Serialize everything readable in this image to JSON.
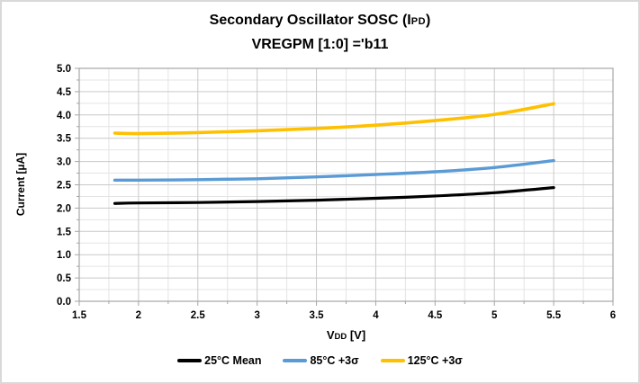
{
  "frame": {
    "background": "#FFFFFF",
    "border_color": "#D9D9D9"
  },
  "title": {
    "line1_prefix": "Secondary Oscillator SOSC (I",
    "line1_subscript": "PD",
    "line1_suffix": ")",
    "line2": "VREGPM [1:0] ='b11"
  },
  "axes": {
    "y_title": "Current [µA]",
    "x_title_main": "V",
    "x_title_subscript": "DD",
    "x_title_rest": " [V]"
  },
  "chart_data": {
    "type": "line",
    "title": "Secondary Oscillator SOSC (IPD) VREGPM [1:0] ='b11",
    "xlabel": "VDD [V]",
    "ylabel": "Current [µA]",
    "xlim": [
      1.5,
      6
    ],
    "ylim": [
      0,
      5
    ],
    "x_major_step": 0.5,
    "x_minor_step": 0.25,
    "y_major_step": 0.5,
    "y_minor_step": 0.25,
    "x_tick_labels": [
      "1.5",
      "2",
      "2.5",
      "3",
      "3.5",
      "4",
      "4.5",
      "5",
      "5.5",
      "6"
    ],
    "y_tick_labels": [
      "0.0",
      "0.5",
      "1.0",
      "1.5",
      "2.0",
      "2.5",
      "3.0",
      "3.5",
      "4.0",
      "4.5",
      "5.0"
    ],
    "grid": {
      "major": true,
      "minor": true
    },
    "legend_position": "bottom",
    "x": [
      1.8,
      2.0,
      2.5,
      3.0,
      3.5,
      4.0,
      4.5,
      5.0,
      5.5
    ],
    "series": [
      {
        "name": "25°C Mean",
        "color": "#000000",
        "width": 3.2,
        "values": [
          2.1,
          2.11,
          2.12,
          2.14,
          2.17,
          2.21,
          2.26,
          2.33,
          2.44
        ]
      },
      {
        "name": "85°C +3σ",
        "color": "#5B9BD5",
        "width": 3.4,
        "values": [
          2.6,
          2.6,
          2.61,
          2.63,
          2.67,
          2.72,
          2.78,
          2.87,
          3.02
        ]
      },
      {
        "name": "125°C +3σ",
        "color": "#FFC000",
        "width": 3.6,
        "values": [
          3.61,
          3.6,
          3.62,
          3.66,
          3.71,
          3.78,
          3.88,
          4.01,
          4.24
        ]
      }
    ],
    "colors": {
      "plot_border": "#A6A6A6",
      "major_grid": "#C9C9C9",
      "minor_grid": "#E4E4E4",
      "tick": "#A6A6A6",
      "tick_label": "#000000"
    }
  }
}
